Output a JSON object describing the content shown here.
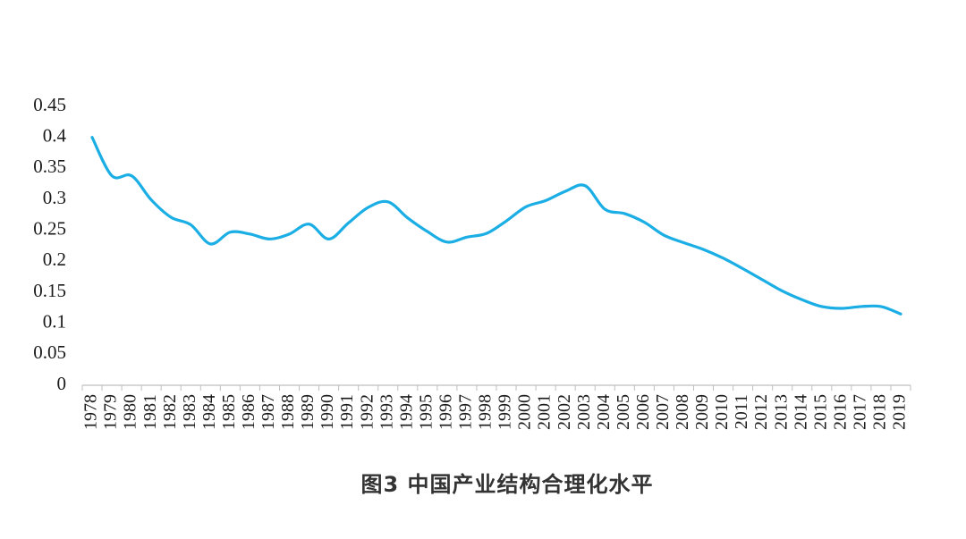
{
  "caption": "图3  中国产业结构合理化水平",
  "chart_data": {
    "type": "line",
    "title": "图3  中国产业结构合理化水平",
    "xlabel": "",
    "ylabel": "",
    "ylim": [
      0,
      0.45
    ],
    "yticks": [
      "0",
      "0.05",
      "0.1",
      "0.15",
      "0.2",
      "0.25",
      "0.3",
      "0.35",
      "0.4",
      "0.45"
    ],
    "grid": false,
    "legend": "none",
    "line_color": "#1aaee5",
    "x": [
      "1978",
      "1979",
      "1980",
      "1981",
      "1982",
      "1983",
      "1984",
      "1985",
      "1986",
      "1987",
      "1988",
      "1989",
      "1990",
      "1991",
      "1992",
      "1993",
      "1994",
      "1995",
      "1996",
      "1997",
      "1998",
      "1999",
      "2000",
      "2001",
      "2002",
      "2003",
      "2004",
      "2005",
      "2006",
      "2007",
      "2008",
      "2009",
      "2010",
      "2011",
      "2012",
      "2013",
      "2014",
      "2015",
      "2016",
      "2017",
      "2018",
      "2019"
    ],
    "series": [
      {
        "values": [
          0.4,
          0.338,
          0.338,
          0.299,
          0.271,
          0.259,
          0.228,
          0.247,
          0.244,
          0.236,
          0.244,
          0.26,
          0.236,
          0.262,
          0.287,
          0.296,
          0.27,
          0.248,
          0.231,
          0.239,
          0.245,
          0.265,
          0.288,
          0.298,
          0.313,
          0.322,
          0.284,
          0.277,
          0.263,
          0.242,
          0.23,
          0.219,
          0.205,
          0.188,
          0.17,
          0.152,
          0.138,
          0.127,
          0.124,
          0.127,
          0.127,
          0.115
        ]
      }
    ]
  }
}
